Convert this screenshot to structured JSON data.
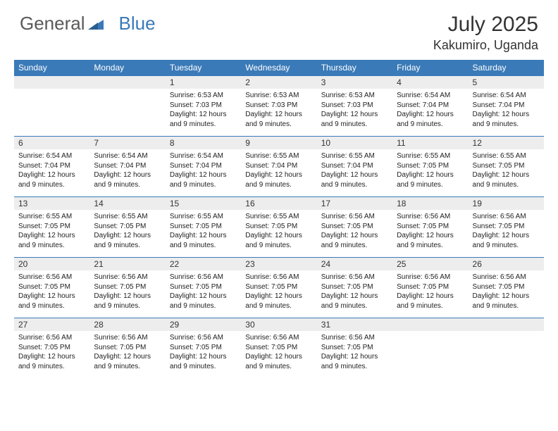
{
  "brand": {
    "part1": "General",
    "part2": "Blue",
    "color_general": "#5a5a5a",
    "color_blue": "#3a7ab8"
  },
  "header": {
    "title": "July 2025",
    "location": "Kakumiro, Uganda"
  },
  "colors": {
    "header_bg": "#3a7ab8",
    "header_text": "#ffffff",
    "daynum_bg": "#ededed",
    "text": "#222222",
    "rule": "#3a7ab8"
  },
  "daysOfWeek": [
    "Sunday",
    "Monday",
    "Tuesday",
    "Wednesday",
    "Thursday",
    "Friday",
    "Saturday"
  ],
  "weeks": [
    [
      {
        "num": "",
        "sunrise": "",
        "sunset": "",
        "daylight": ""
      },
      {
        "num": "",
        "sunrise": "",
        "sunset": "",
        "daylight": ""
      },
      {
        "num": "1",
        "sunrise": "Sunrise: 6:53 AM",
        "sunset": "Sunset: 7:03 PM",
        "daylight": "Daylight: 12 hours and 9 minutes."
      },
      {
        "num": "2",
        "sunrise": "Sunrise: 6:53 AM",
        "sunset": "Sunset: 7:03 PM",
        "daylight": "Daylight: 12 hours and 9 minutes."
      },
      {
        "num": "3",
        "sunrise": "Sunrise: 6:53 AM",
        "sunset": "Sunset: 7:03 PM",
        "daylight": "Daylight: 12 hours and 9 minutes."
      },
      {
        "num": "4",
        "sunrise": "Sunrise: 6:54 AM",
        "sunset": "Sunset: 7:04 PM",
        "daylight": "Daylight: 12 hours and 9 minutes."
      },
      {
        "num": "5",
        "sunrise": "Sunrise: 6:54 AM",
        "sunset": "Sunset: 7:04 PM",
        "daylight": "Daylight: 12 hours and 9 minutes."
      }
    ],
    [
      {
        "num": "6",
        "sunrise": "Sunrise: 6:54 AM",
        "sunset": "Sunset: 7:04 PM",
        "daylight": "Daylight: 12 hours and 9 minutes."
      },
      {
        "num": "7",
        "sunrise": "Sunrise: 6:54 AM",
        "sunset": "Sunset: 7:04 PM",
        "daylight": "Daylight: 12 hours and 9 minutes."
      },
      {
        "num": "8",
        "sunrise": "Sunrise: 6:54 AM",
        "sunset": "Sunset: 7:04 PM",
        "daylight": "Daylight: 12 hours and 9 minutes."
      },
      {
        "num": "9",
        "sunrise": "Sunrise: 6:55 AM",
        "sunset": "Sunset: 7:04 PM",
        "daylight": "Daylight: 12 hours and 9 minutes."
      },
      {
        "num": "10",
        "sunrise": "Sunrise: 6:55 AM",
        "sunset": "Sunset: 7:04 PM",
        "daylight": "Daylight: 12 hours and 9 minutes."
      },
      {
        "num": "11",
        "sunrise": "Sunrise: 6:55 AM",
        "sunset": "Sunset: 7:05 PM",
        "daylight": "Daylight: 12 hours and 9 minutes."
      },
      {
        "num": "12",
        "sunrise": "Sunrise: 6:55 AM",
        "sunset": "Sunset: 7:05 PM",
        "daylight": "Daylight: 12 hours and 9 minutes."
      }
    ],
    [
      {
        "num": "13",
        "sunrise": "Sunrise: 6:55 AM",
        "sunset": "Sunset: 7:05 PM",
        "daylight": "Daylight: 12 hours and 9 minutes."
      },
      {
        "num": "14",
        "sunrise": "Sunrise: 6:55 AM",
        "sunset": "Sunset: 7:05 PM",
        "daylight": "Daylight: 12 hours and 9 minutes."
      },
      {
        "num": "15",
        "sunrise": "Sunrise: 6:55 AM",
        "sunset": "Sunset: 7:05 PM",
        "daylight": "Daylight: 12 hours and 9 minutes."
      },
      {
        "num": "16",
        "sunrise": "Sunrise: 6:55 AM",
        "sunset": "Sunset: 7:05 PM",
        "daylight": "Daylight: 12 hours and 9 minutes."
      },
      {
        "num": "17",
        "sunrise": "Sunrise: 6:56 AM",
        "sunset": "Sunset: 7:05 PM",
        "daylight": "Daylight: 12 hours and 9 minutes."
      },
      {
        "num": "18",
        "sunrise": "Sunrise: 6:56 AM",
        "sunset": "Sunset: 7:05 PM",
        "daylight": "Daylight: 12 hours and 9 minutes."
      },
      {
        "num": "19",
        "sunrise": "Sunrise: 6:56 AM",
        "sunset": "Sunset: 7:05 PM",
        "daylight": "Daylight: 12 hours and 9 minutes."
      }
    ],
    [
      {
        "num": "20",
        "sunrise": "Sunrise: 6:56 AM",
        "sunset": "Sunset: 7:05 PM",
        "daylight": "Daylight: 12 hours and 9 minutes."
      },
      {
        "num": "21",
        "sunrise": "Sunrise: 6:56 AM",
        "sunset": "Sunset: 7:05 PM",
        "daylight": "Daylight: 12 hours and 9 minutes."
      },
      {
        "num": "22",
        "sunrise": "Sunrise: 6:56 AM",
        "sunset": "Sunset: 7:05 PM",
        "daylight": "Daylight: 12 hours and 9 minutes."
      },
      {
        "num": "23",
        "sunrise": "Sunrise: 6:56 AM",
        "sunset": "Sunset: 7:05 PM",
        "daylight": "Daylight: 12 hours and 9 minutes."
      },
      {
        "num": "24",
        "sunrise": "Sunrise: 6:56 AM",
        "sunset": "Sunset: 7:05 PM",
        "daylight": "Daylight: 12 hours and 9 minutes."
      },
      {
        "num": "25",
        "sunrise": "Sunrise: 6:56 AM",
        "sunset": "Sunset: 7:05 PM",
        "daylight": "Daylight: 12 hours and 9 minutes."
      },
      {
        "num": "26",
        "sunrise": "Sunrise: 6:56 AM",
        "sunset": "Sunset: 7:05 PM",
        "daylight": "Daylight: 12 hours and 9 minutes."
      }
    ],
    [
      {
        "num": "27",
        "sunrise": "Sunrise: 6:56 AM",
        "sunset": "Sunset: 7:05 PM",
        "daylight": "Daylight: 12 hours and 9 minutes."
      },
      {
        "num": "28",
        "sunrise": "Sunrise: 6:56 AM",
        "sunset": "Sunset: 7:05 PM",
        "daylight": "Daylight: 12 hours and 9 minutes."
      },
      {
        "num": "29",
        "sunrise": "Sunrise: 6:56 AM",
        "sunset": "Sunset: 7:05 PM",
        "daylight": "Daylight: 12 hours and 9 minutes."
      },
      {
        "num": "30",
        "sunrise": "Sunrise: 6:56 AM",
        "sunset": "Sunset: 7:05 PM",
        "daylight": "Daylight: 12 hours and 9 minutes."
      },
      {
        "num": "31",
        "sunrise": "Sunrise: 6:56 AM",
        "sunset": "Sunset: 7:05 PM",
        "daylight": "Daylight: 12 hours and 9 minutes."
      },
      {
        "num": "",
        "sunrise": "",
        "sunset": "",
        "daylight": ""
      },
      {
        "num": "",
        "sunrise": "",
        "sunset": "",
        "daylight": ""
      }
    ]
  ]
}
